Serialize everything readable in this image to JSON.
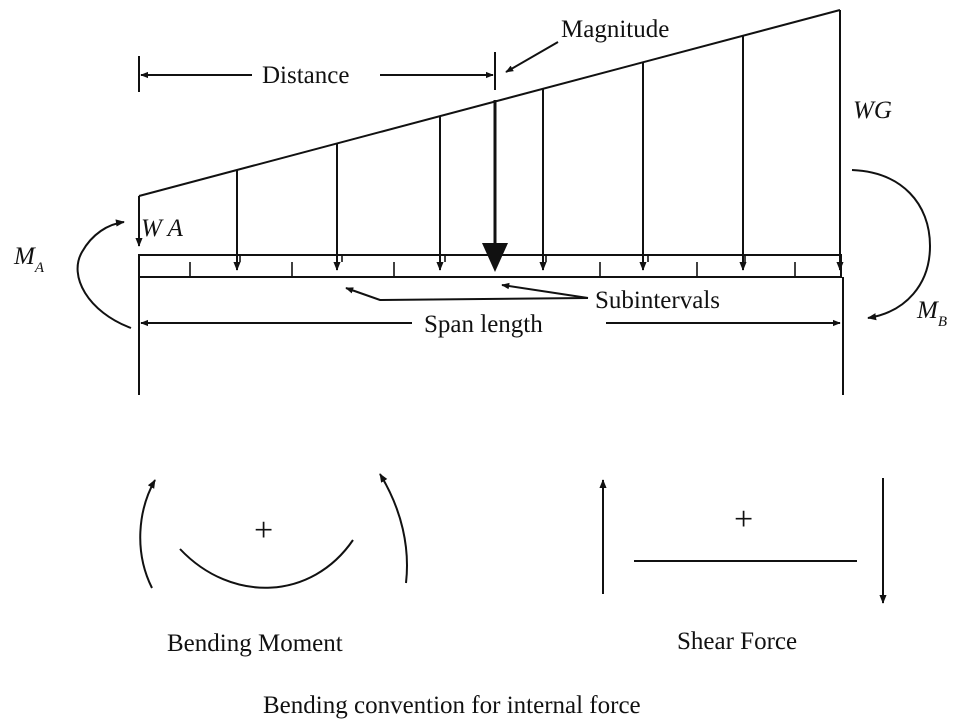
{
  "labels": {
    "magnitude": "Magnitude",
    "distance": "Distance",
    "wg": "WG",
    "wa": "W A",
    "ma_main": "M",
    "ma_sub": "A",
    "mb_main": "M",
    "mb_sub": "B",
    "subintervals": "Subintervals",
    "span_length": "Span length",
    "plus_moment": "+",
    "plus_shear": "+",
    "bending_moment": "Bending Moment",
    "shear_force": "Shear Force",
    "caption": "Bending convention for internal force"
  },
  "load": {
    "arrow_count": 8,
    "subinterval_count": 7
  },
  "colors": {
    "ink": "#111111",
    "background": "#ffffff"
  }
}
